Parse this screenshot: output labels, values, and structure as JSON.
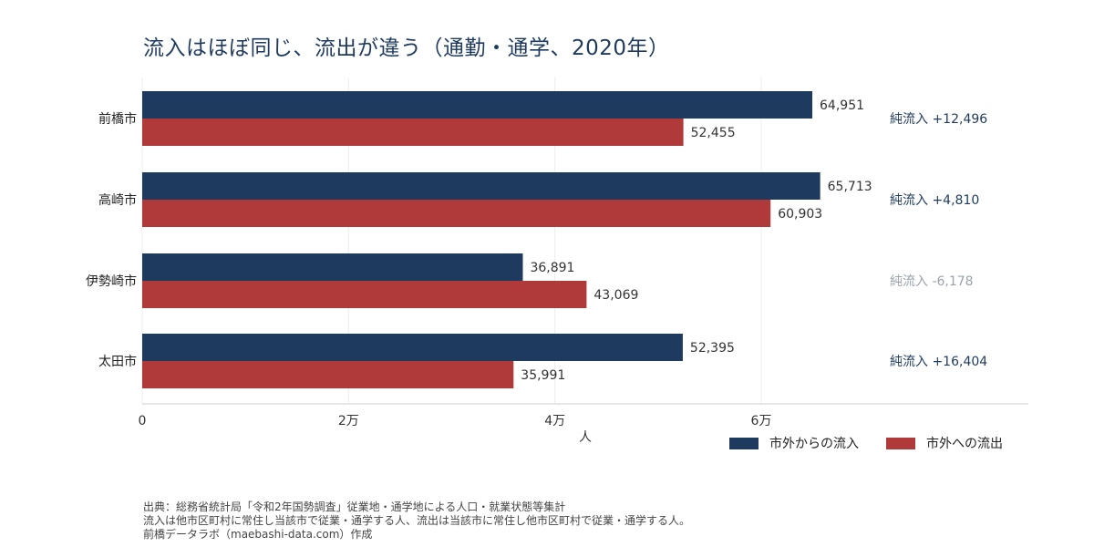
{
  "title": "流入はほぼ同じ、流出が違う（通勤・通学、2020年）",
  "chart_data": {
    "type": "bar",
    "orientation": "horizontal",
    "categories": [
      "前橋市",
      "高崎市",
      "伊勢崎市",
      "太田市"
    ],
    "series": [
      {
        "name": "市外からの流入",
        "color": "#1e3a5f",
        "values": [
          64951,
          65713,
          36891,
          52395
        ]
      },
      {
        "name": "市外への流出",
        "color": "#b03a3a",
        "values": [
          52455,
          60903,
          43069,
          35991
        ]
      }
    ],
    "value_labels": [
      [
        "64,951",
        "65,713",
        "36,891",
        "52,395"
      ],
      [
        "52,455",
        "60,903",
        "43,069",
        "35,991"
      ]
    ],
    "net_labels": [
      "純流入 +12,496",
      "純流入 +4,810",
      "純流入 -6,178",
      "純流入 +16,404"
    ],
    "net_colors": [
      "#1e3a5f",
      "#1e3a5f",
      "#9aa3ad",
      "#1e3a5f"
    ],
    "x_ticks": [
      0,
      20000,
      40000,
      60000
    ],
    "x_tick_labels": [
      "0",
      "2万",
      "4万",
      "6万"
    ],
    "xlim": [
      0,
      86000
    ],
    "xlabel": "人",
    "ylabel": "",
    "grid": "vertical",
    "legend_position": "bottom-right"
  },
  "caption": [
    "出典：総務省統計局「令和2年国勢調査」従業地・通学地による人口・就業状態等集計",
    "流入は他市区町村に常住し当該市で従業・通学する人、流出は当該市に常住し他市区町村で従業・通学する人。",
    "前橋データラボ（maebashi-data.com）作成"
  ]
}
